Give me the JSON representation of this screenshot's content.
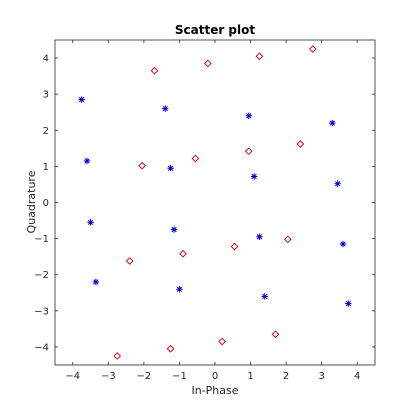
{
  "chart_data": {
    "type": "scatter",
    "title": "Scatter plot",
    "xlabel": "In-Phase",
    "ylabel": "Quadrature",
    "xlim": [
      -4.5,
      4.5
    ],
    "ylim": [
      -4.5,
      4.5
    ],
    "xticks": [
      -4,
      -3,
      -2,
      -1,
      0,
      1,
      2,
      3,
      4
    ],
    "yticks": [
      -4,
      -3,
      -2,
      -1,
      0,
      1,
      2,
      3,
      4
    ],
    "grid": false,
    "series": [
      {
        "marker": "asterisk",
        "color": "#0000cc",
        "points": [
          [
            -3.75,
            2.85
          ],
          [
            -1.4,
            2.6
          ],
          [
            0.95,
            2.4
          ],
          [
            3.3,
            2.2
          ],
          [
            -3.6,
            1.15
          ],
          [
            -1.25,
            0.95
          ],
          [
            1.1,
            0.72
          ],
          [
            3.45,
            0.52
          ],
          [
            -3.5,
            -0.55
          ],
          [
            -1.15,
            -0.75
          ],
          [
            1.25,
            -0.95
          ],
          [
            3.6,
            -1.15
          ],
          [
            -3.35,
            -2.2
          ],
          [
            -1.0,
            -2.4
          ],
          [
            1.4,
            -2.6
          ],
          [
            3.75,
            -2.8
          ]
        ]
      },
      {
        "marker": "diamond",
        "color": "#cc0000",
        "points": [
          [
            -1.7,
            3.65
          ],
          [
            -0.2,
            3.85
          ],
          [
            1.25,
            4.05
          ],
          [
            2.75,
            4.25
          ],
          [
            -2.05,
            1.02
          ],
          [
            -0.55,
            1.22
          ],
          [
            0.95,
            1.42
          ],
          [
            2.4,
            1.62
          ],
          [
            -2.4,
            -1.62
          ],
          [
            -0.9,
            -1.42
          ],
          [
            0.55,
            -1.22
          ],
          [
            2.05,
            -1.02
          ],
          [
            -2.75,
            -4.25
          ],
          [
            -1.25,
            -4.05
          ],
          [
            0.2,
            -3.85
          ],
          [
            1.7,
            -3.65
          ]
        ]
      }
    ]
  }
}
